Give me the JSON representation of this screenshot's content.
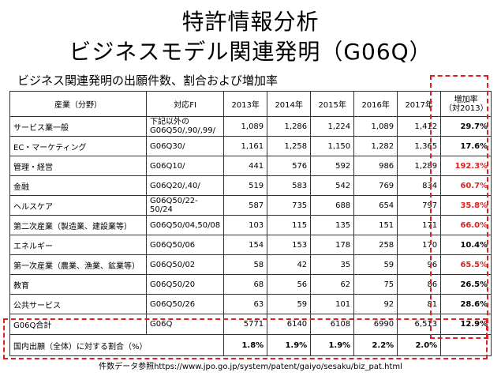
{
  "title_line1": "特許情報分析",
  "title_line2": "ビジネスモデル関連発明（G06Q）",
  "subtitle": "ビジネス関連発明の出願件数、割合および増加率",
  "table": {
    "headers": [
      "産業（分野）",
      "対応FI",
      "2013年",
      "2014年",
      "2015年",
      "2016年",
      "2017年",
      "増加率\n（対2013）"
    ],
    "rows": [
      {
        "cat": "サービス業一般",
        "fi": "下記以外の\nG06Q50/,90/,99/",
        "v": [
          "1,089",
          "1,286",
          "1,224",
          "1,089",
          "1,412"
        ],
        "rate": "29.7%",
        "color": "#000000"
      },
      {
        "cat": "EC・マーケティング",
        "fi": "G06Q30/",
        "v": [
          "1,161",
          "1,258",
          "1,150",
          "1,282",
          "1,365"
        ],
        "rate": "17.6%",
        "color": "#000000"
      },
      {
        "cat": "管理・経営",
        "fi": "G06Q10/",
        "v": [
          "441",
          "576",
          "592",
          "986",
          "1,289"
        ],
        "rate": "192.3%",
        "color": "#e02020"
      },
      {
        "cat": "金融",
        "fi": "G06Q20/,40/",
        "v": [
          "519",
          "583",
          "542",
          "769",
          "834"
        ],
        "rate": "60.7%",
        "color": "#e02020"
      },
      {
        "cat": "ヘルスケア",
        "fi": "G06Q50/22-50/24",
        "v": [
          "587",
          "735",
          "688",
          "654",
          "797"
        ],
        "rate": "35.8%",
        "color": "#e02020"
      },
      {
        "cat": "第二次産業（製造業、建設業等）",
        "fi": "G06Q50/04,50/08",
        "v": [
          "103",
          "115",
          "135",
          "151",
          "171"
        ],
        "rate": "66.0%",
        "color": "#e02020"
      },
      {
        "cat": "エネルギー",
        "fi": "G06Q50/06",
        "v": [
          "154",
          "153",
          "178",
          "258",
          "170"
        ],
        "rate": "10.4%",
        "color": "#000000"
      },
      {
        "cat": "第一次産業（農業、漁業、鉱業等）",
        "fi": "G06Q50/02",
        "v": [
          "58",
          "42",
          "35",
          "59",
          "96"
        ],
        "rate": "65.5%",
        "color": "#e02020"
      },
      {
        "cat": "教育",
        "fi": "G06Q50/20",
        "v": [
          "68",
          "56",
          "62",
          "75",
          "86"
        ],
        "rate": "26.5%",
        "color": "#000000"
      },
      {
        "cat": "公共サービス",
        "fi": "G06Q50/26",
        "v": [
          "63",
          "59",
          "101",
          "92",
          "81"
        ],
        "rate": "28.6%",
        "color": "#000000"
      }
    ],
    "total": {
      "cat": "G06Q合計",
      "fi": "G06Q",
      "v": [
        "5771",
        "6140",
        "6108",
        "6990",
        "6,513"
      ],
      "rate": "12.9%"
    },
    "share": {
      "label": "国内出願（全体）に対する割合（%）",
      "v": [
        "1.8%",
        "1.9%",
        "1.9%",
        "2.2%",
        "2.0%"
      ]
    }
  },
  "footer": "件数データ参照https://www.jpo.go.jp/system/patent/gaiyo/sesaku/biz_pat.html"
}
